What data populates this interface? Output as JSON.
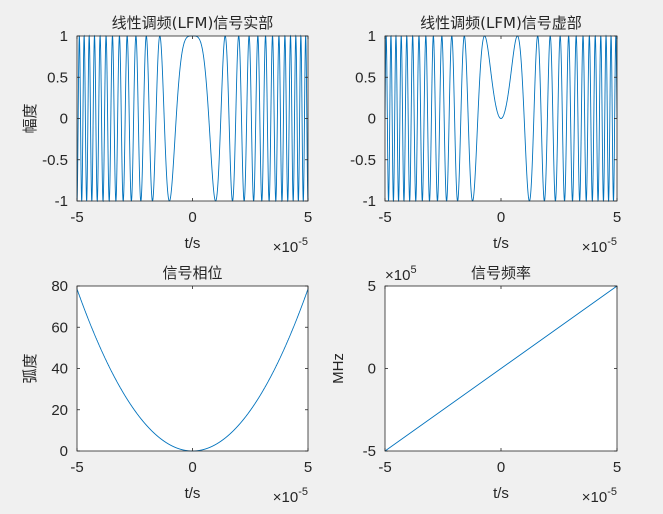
{
  "figure": {
    "background": "#f0f0f0",
    "axes_color": "#262626",
    "line_color": "#0072bd"
  },
  "chart_data": [
    {
      "id": "real",
      "type": "line",
      "title": "线性调频(LFM)信号实部",
      "xlabel": "t/s",
      "ylabel": "幅度",
      "xlim": [
        -5e-05,
        5e-05
      ],
      "ylim": [
        -1,
        1
      ],
      "xticks": [
        -5,
        0,
        5
      ],
      "xtick_labels": [
        "-5",
        "0",
        "5"
      ],
      "yticks": [
        -1,
        -0.5,
        0,
        0.5,
        1
      ],
      "ytick_labels": [
        "-1",
        "-0.5",
        "0",
        "0.5",
        "1"
      ],
      "x_exponent": "-5",
      "series": [
        {
          "function": "cos(pi*K*t^2)",
          "K": 10000000000.0,
          "t_range": [
            -5e-05,
            5e-05
          ]
        }
      ]
    },
    {
      "id": "imag",
      "type": "line",
      "title": "线性调频(LFM)信号虚部",
      "xlabel": "t/s",
      "ylabel": "",
      "xlim": [
        -5e-05,
        5e-05
      ],
      "ylim": [
        -1,
        1
      ],
      "xticks": [
        -5,
        0,
        5
      ],
      "xtick_labels": [
        "-5",
        "0",
        "5"
      ],
      "yticks": [
        -1,
        -0.5,
        0,
        0.5,
        1
      ],
      "ytick_labels": [
        "-1",
        "-0.5",
        "0",
        "0.5",
        "1"
      ],
      "x_exponent": "-5",
      "series": [
        {
          "function": "sin(pi*K*t^2)",
          "K": 10000000000.0,
          "t_range": [
            -5e-05,
            5e-05
          ]
        }
      ]
    },
    {
      "id": "phase",
      "type": "line",
      "title": "信号相位",
      "xlabel": "t/s",
      "ylabel": "弧度",
      "xlim": [
        -5e-05,
        5e-05
      ],
      "ylim": [
        0,
        80
      ],
      "xticks": [
        -5,
        0,
        5
      ],
      "xtick_labels": [
        "-5",
        "0",
        "5"
      ],
      "yticks": [
        0,
        20,
        40,
        60,
        80
      ],
      "ytick_labels": [
        "0",
        "20",
        "40",
        "60",
        "80"
      ],
      "x_exponent": "-5",
      "series": [
        {
          "function": "pi*K*t^2",
          "K": 10000000000.0,
          "t_range": [
            -5e-05,
            5e-05
          ],
          "x": [
            -5e-05,
            0,
            5e-05
          ],
          "y": [
            78.54,
            0,
            78.54
          ]
        }
      ]
    },
    {
      "id": "freq",
      "type": "line",
      "title": "信号频率",
      "xlabel": "t/s",
      "ylabel": "MHz",
      "xlim": [
        -5e-05,
        5e-05
      ],
      "ylim": [
        -500000,
        500000
      ],
      "xticks": [
        -5,
        0,
        5
      ],
      "xtick_labels": [
        "-5",
        "0",
        "5"
      ],
      "yticks": [
        -5,
        0,
        5
      ],
      "ytick_labels": [
        "-5",
        "0",
        "5"
      ],
      "x_exponent": "-5",
      "y_exponent": "5",
      "series": [
        {
          "x": [
            -5e-05,
            5e-05
          ],
          "y": [
            -500000,
            500000
          ]
        }
      ]
    }
  ]
}
